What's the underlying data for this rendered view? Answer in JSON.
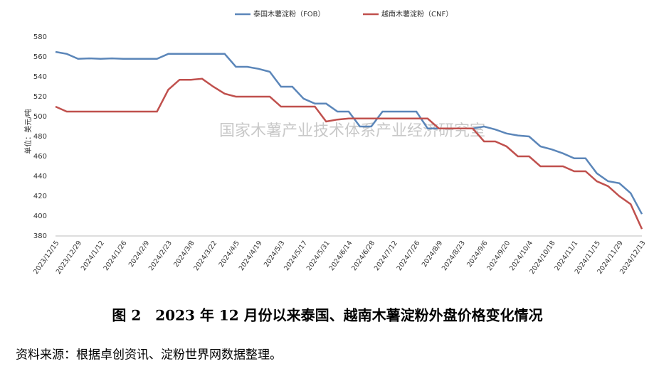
{
  "chart_data": {
    "type": "line",
    "y_label": "单位：美元/吨",
    "watermark": "国家木薯产业技术体系产业经济研究室",
    "caption": "图 2　2023 年 12 月份以来泰国、越南木薯淀粉外盘价格变化情况",
    "source": "资料来源：根据卓创资讯、淀粉世界网数据整理。",
    "categories": [
      "2023/12/15",
      null,
      "2023/12/29",
      null,
      "2024/1/12",
      null,
      "2024/1/26",
      null,
      "2024/2/9",
      null,
      "2024/2/23",
      null,
      "2024/3/8",
      null,
      "2024/3/22",
      null,
      "2024/4/5",
      null,
      "2024/4/19",
      null,
      "2024/5/3",
      null,
      "2024/5/17",
      null,
      "2024/5/31",
      null,
      "2024/6/14",
      null,
      "2024/6/28",
      null,
      "2024/7/12",
      null,
      "2024/7/26",
      null,
      "2024/8/9",
      null,
      "2024/8/23",
      null,
      "2024/9/6",
      null,
      "2024/9/20",
      null,
      "2024/10/4",
      null,
      "2024/10/18",
      null,
      "2024/11/1",
      null,
      "2024/11/15",
      null,
      "2024/11/29",
      null,
      "2024/12/13"
    ],
    "series": [
      {
        "name": "泰国木薯淀粉（FOB）",
        "color": "#5b86b9",
        "values": [
          565,
          563,
          558,
          558.5,
          558,
          558.5,
          558,
          558,
          558,
          558,
          563,
          563,
          563,
          563,
          563,
          563,
          550,
          550,
          548,
          545,
          530,
          530,
          518,
          513,
          513,
          505,
          505,
          490,
          490,
          505,
          505,
          505,
          505,
          488,
          488,
          488,
          488,
          488,
          490,
          487,
          483,
          481,
          480,
          470,
          467,
          463,
          458,
          458,
          443,
          435,
          433,
          423,
          402
        ]
      },
      {
        "name": "越南木薯淀粉（CNF）",
        "color": "#c0504d",
        "values": [
          510,
          505,
          505,
          505,
          505,
          505,
          505,
          505,
          505,
          505,
          527,
          537,
          537,
          538,
          530,
          523,
          520,
          520,
          520,
          520,
          510,
          510,
          510,
          510,
          495,
          497,
          498,
          498,
          498,
          498,
          498,
          498,
          498,
          498,
          488,
          488,
          488,
          488,
          475,
          475,
          470,
          460,
          460,
          450,
          450,
          450,
          445,
          445,
          435,
          430,
          420,
          412,
          387
        ]
      }
    ],
    "ylim": [
      380,
      580
    ],
    "yticks": [
      380,
      400,
      420,
      440,
      460,
      480,
      500,
      520,
      540,
      560,
      580
    ],
    "grid": false
  }
}
